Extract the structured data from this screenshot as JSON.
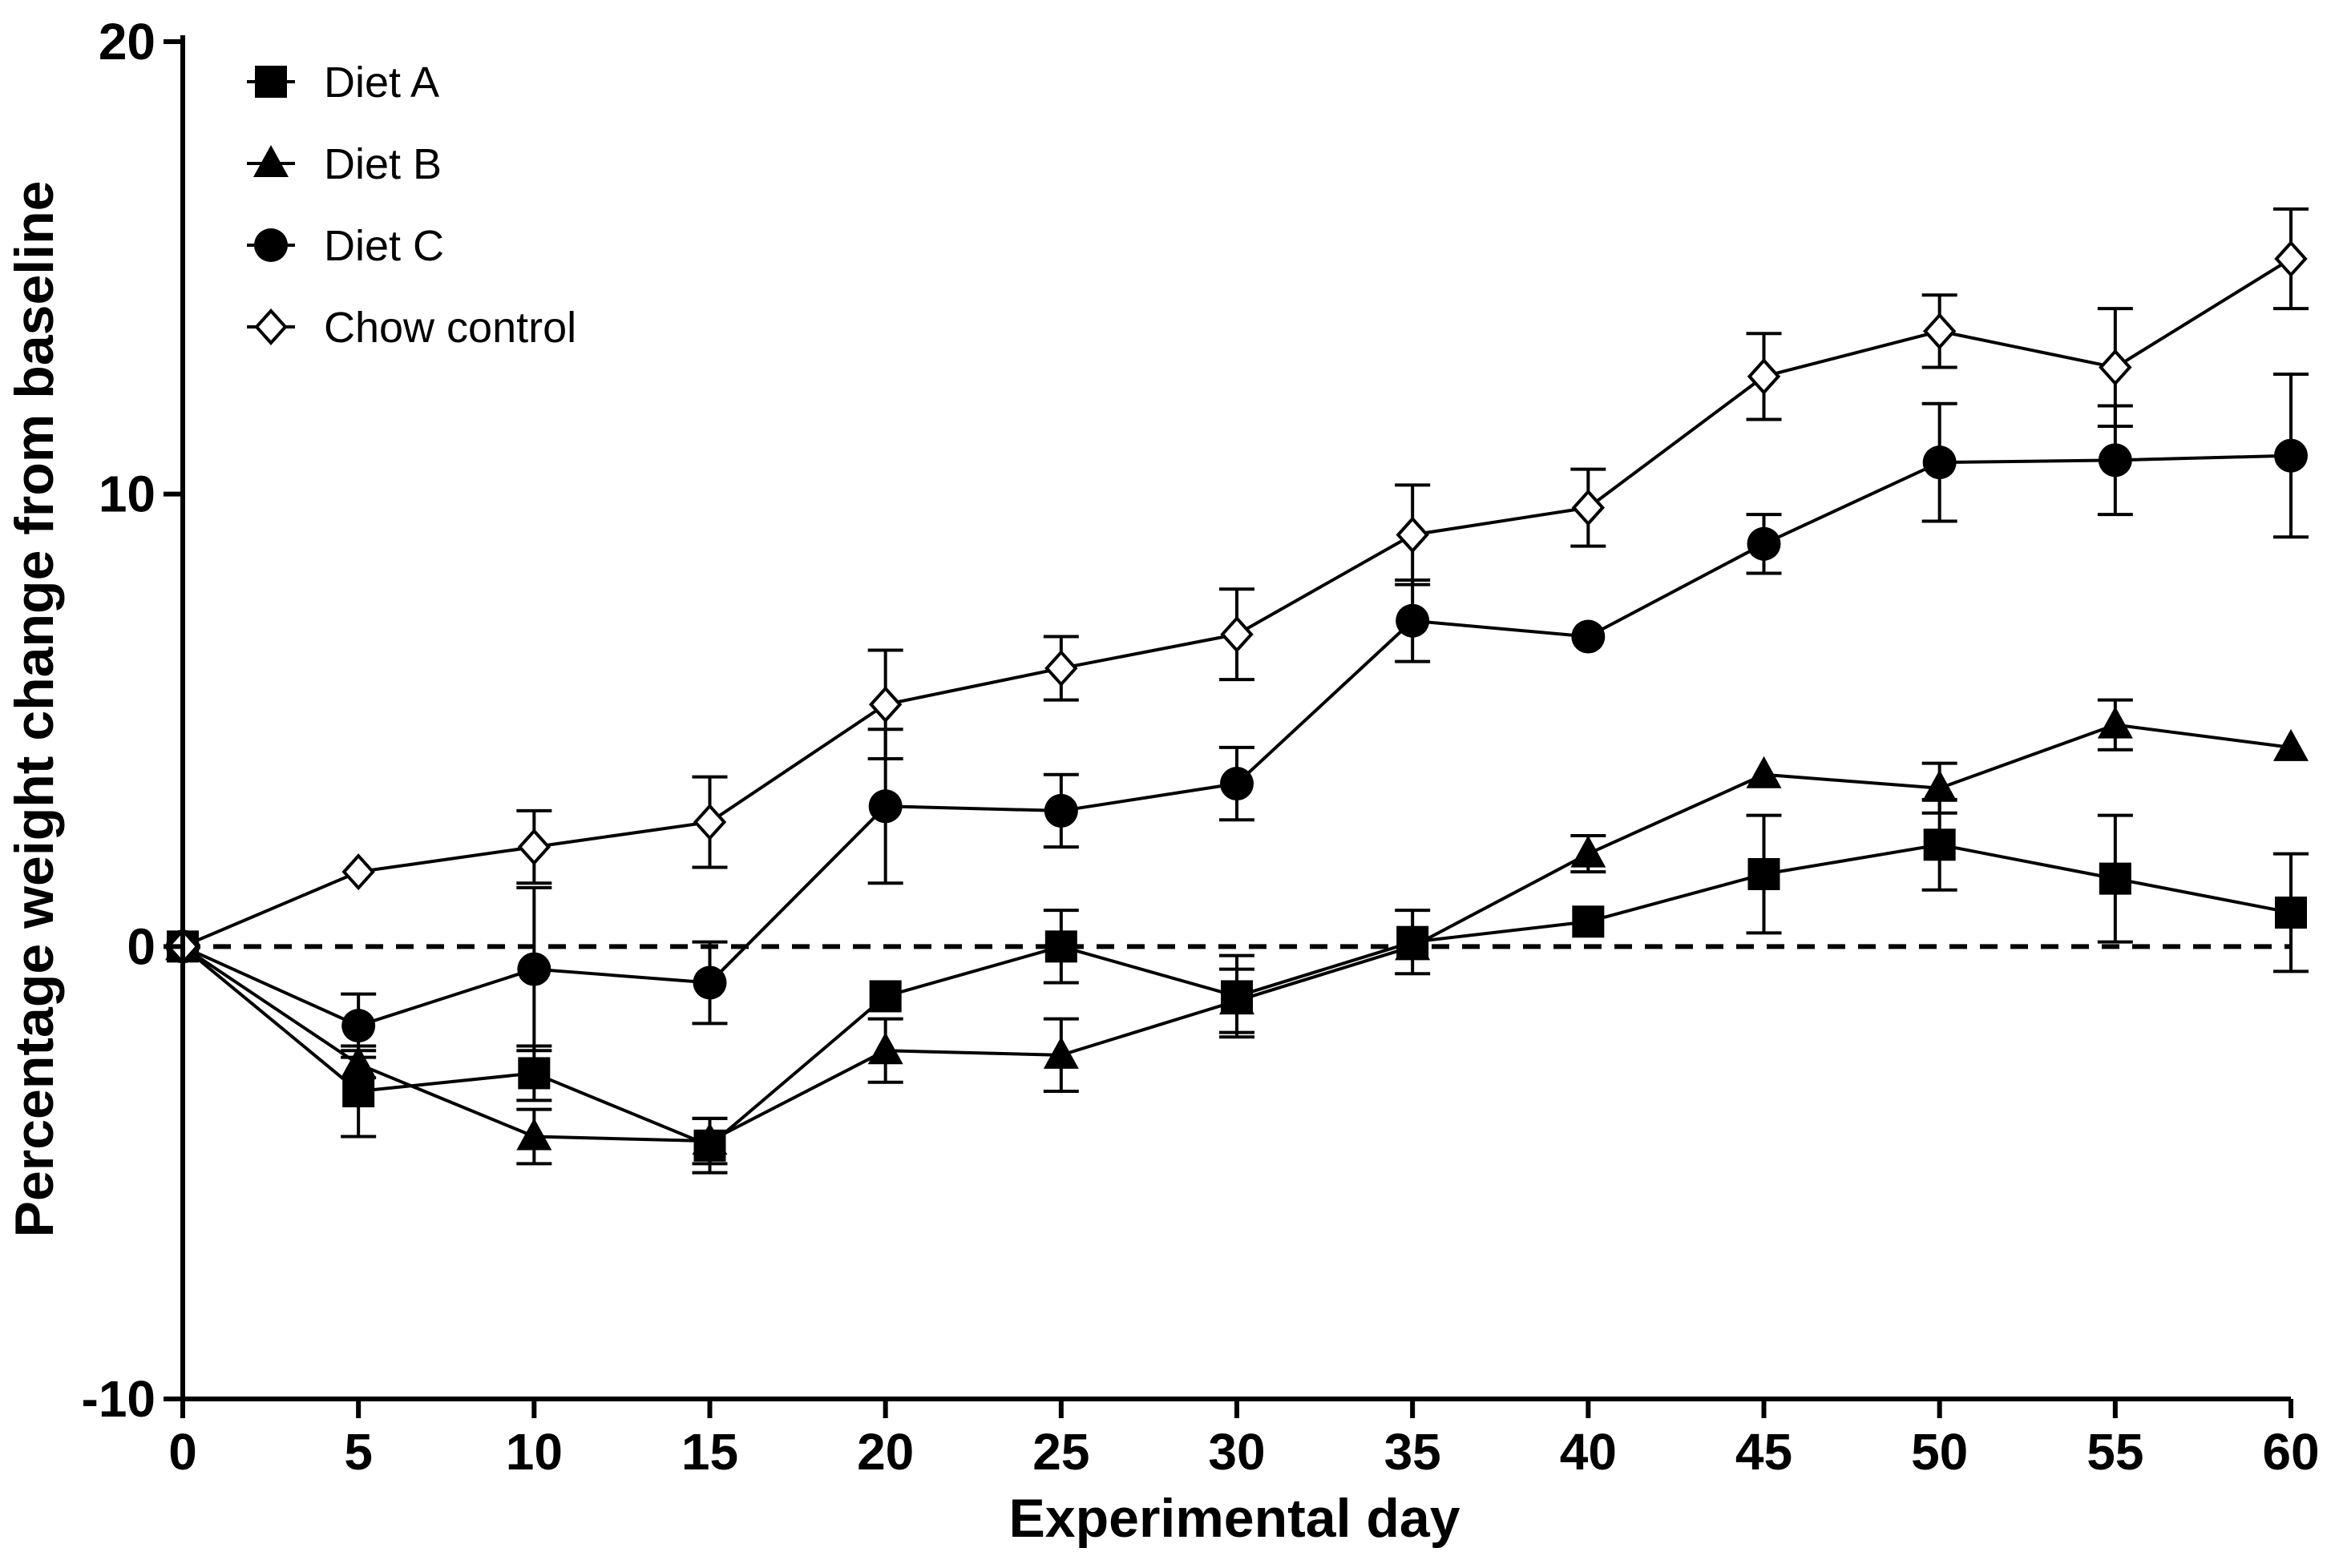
{
  "chart_data": {
    "type": "line",
    "title": "",
    "xlabel": "Experimental day",
    "ylabel": "Percentage weight change from baseline",
    "xlim": [
      0,
      60
    ],
    "ylim": [
      -10,
      20
    ],
    "x_ticks": [
      "0",
      "5",
      "10",
      "15",
      "20",
      "25",
      "30",
      "35",
      "40",
      "45",
      "50",
      "55",
      "60"
    ],
    "y_ticks": [
      "20",
      "10",
      "0",
      "-10"
    ],
    "x": [
      0,
      5,
      10,
      15,
      20,
      25,
      30,
      35,
      40,
      45,
      50,
      55,
      60
    ],
    "reference_line": {
      "y": 0,
      "style": "dashed"
    },
    "legend": {
      "position": "top-left"
    },
    "series": [
      {
        "name": "Diet A",
        "marker": "square-filled",
        "values": [
          0,
          -3.2,
          -2.8,
          -4.4,
          -1.1,
          0,
          -1.1,
          0.1,
          0.55,
          1.6,
          2.25,
          1.5,
          0.75
        ],
        "errors": [
          0,
          1.0,
          0.6,
          0.6,
          0,
          0.8,
          0.9,
          0.7,
          0,
          1.3,
          1.0,
          1.4,
          1.3
        ]
      },
      {
        "name": "Diet B",
        "marker": "triangle-filled",
        "values": [
          0,
          -2.6,
          -4.2,
          -4.3,
          -2.3,
          -2.4,
          -1.2,
          0,
          2.05,
          3.8,
          3.5,
          4.9,
          4.4
        ],
        "errors": [
          0,
          0.3,
          0.6,
          0.5,
          0.7,
          0.8,
          0.7,
          0,
          0.4,
          0,
          0.55,
          0.55,
          0
        ]
      },
      {
        "name": "Diet C",
        "marker": "circle-filled",
        "values": [
          0,
          -1.75,
          -0.5,
          -0.8,
          3.1,
          3.0,
          3.6,
          7.2,
          6.85,
          8.9,
          10.7,
          10.75,
          10.85
        ],
        "errors": [
          0,
          0.7,
          1.8,
          0.9,
          1.7,
          0.8,
          0.8,
          0.9,
          0,
          0.65,
          1.3,
          1.2,
          1.8
        ]
      },
      {
        "name": "Chow control",
        "marker": "diamond-open",
        "values": [
          0,
          1.65,
          2.2,
          2.75,
          5.35,
          6.15,
          6.9,
          9.1,
          9.7,
          12.6,
          13.6,
          12.8,
          15.2
        ],
        "errors": [
          0,
          0,
          0.8,
          1.0,
          1.2,
          0.7,
          1.0,
          1.1,
          0.85,
          0.95,
          0.8,
          1.3,
          1.1
        ]
      }
    ]
  }
}
